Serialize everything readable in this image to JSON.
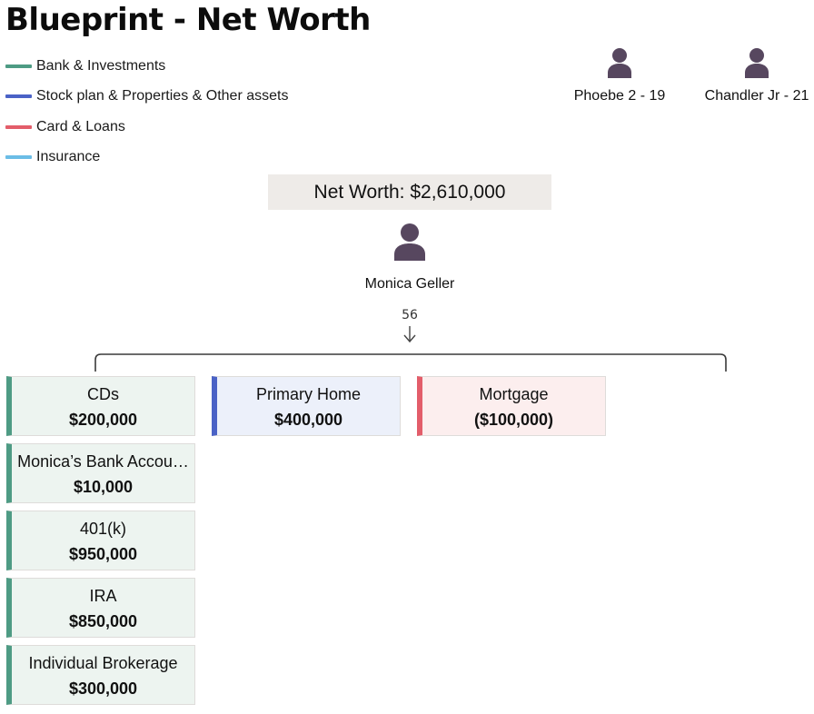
{
  "page": {
    "title": "Blueprint - Net Worth"
  },
  "colors": {
    "bank": "#4e9b84",
    "asset": "#4a62c6",
    "loan": "#e35d6a",
    "insurance": "#6bbde6",
    "person": "#57475f"
  },
  "legend": [
    {
      "label": "Bank & Investments",
      "color": "#4e9b84"
    },
    {
      "label": "Stock plan & Properties & Other assets",
      "color": "#4a62c6"
    },
    {
      "label": "Card & Loans",
      "color": "#e35d6a"
    },
    {
      "label": "Insurance",
      "color": "#6bbde6"
    }
  ],
  "children": [
    {
      "label": "Phoebe 2 - 19",
      "icon": "person-icon"
    },
    {
      "label": "Chandler Jr - 21",
      "icon": "person-icon"
    }
  ],
  "summary": {
    "net_worth": "Net Worth: $2,610,000"
  },
  "owner": {
    "name": "Monica Geller",
    "age": "56",
    "icon": "person-icon"
  },
  "columns": {
    "bank": [
      {
        "name": "CDs",
        "value": "$200,000"
      },
      {
        "name": "Monica’s Bank Accou…",
        "value": "$10,000"
      },
      {
        "name": "401(k)",
        "value": "$950,000"
      },
      {
        "name": "IRA",
        "value": "$850,000"
      },
      {
        "name": "Individual Brokerage",
        "value": "$300,000"
      }
    ],
    "assets": [
      {
        "name": "Primary Home",
        "value": "$400,000"
      }
    ],
    "loans": [
      {
        "name": "Mortgage",
        "value": "($100,000)"
      }
    ]
  }
}
